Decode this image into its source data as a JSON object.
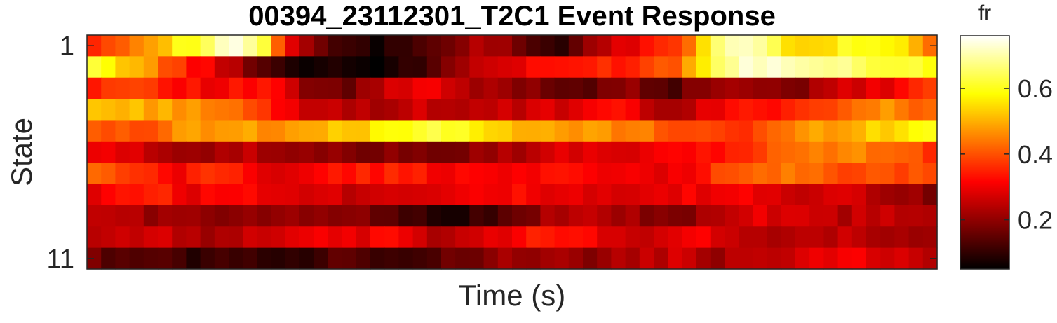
{
  "chart_data": {
    "type": "heatmap",
    "title": "00394_23112301_T2C1 Event Response",
    "xlabel": "Time (s)",
    "ylabel": "State",
    "colorbar_label": "fr",
    "colormap": "hot",
    "clim": [
      0.05,
      0.76
    ],
    "colorbar_ticks": [
      {
        "value": 0.2,
        "label": "0.2"
      },
      {
        "value": 0.4,
        "label": "0.4"
      },
      {
        "value": 0.6,
        "label": "0.6"
      }
    ],
    "y_ticks": [
      {
        "row": 1,
        "label": "1"
      },
      {
        "row": 11,
        "label": "11"
      }
    ],
    "rows": 11,
    "columns": 60,
    "row_profiles": [
      {
        "state": 1,
        "anchors": [
          [
            0,
            0.38
          ],
          [
            5,
            0.48
          ],
          [
            10,
            0.62
          ],
          [
            14,
            0.73
          ],
          [
            17,
            0.62
          ],
          [
            19,
            0.32
          ],
          [
            23,
            0.12
          ],
          [
            28,
            0.07
          ],
          [
            33,
            0.14
          ],
          [
            38,
            0.22
          ],
          [
            42,
            0.18
          ],
          [
            46,
            0.07
          ],
          [
            50,
            0.24
          ],
          [
            55,
            0.32
          ],
          [
            59,
            0.42
          ],
          [
            61,
            0.6
          ],
          [
            63,
            0.72
          ],
          [
            66,
            0.7
          ],
          [
            70,
            0.52
          ],
          [
            75,
            0.6
          ],
          [
            80,
            0.56
          ],
          [
            83,
            0.45
          ]
        ]
      },
      {
        "state": 2,
        "anchors": [
          [
            0,
            0.6
          ],
          [
            4,
            0.52
          ],
          [
            8,
            0.38
          ],
          [
            12,
            0.28
          ],
          [
            16,
            0.18
          ],
          [
            19,
            0.08
          ],
          [
            24,
            0.08
          ],
          [
            29,
            0.05
          ],
          [
            33,
            0.12
          ],
          [
            37,
            0.24
          ],
          [
            43,
            0.3
          ],
          [
            48,
            0.34
          ],
          [
            53,
            0.36
          ],
          [
            58,
            0.42
          ],
          [
            61,
            0.62
          ],
          [
            64,
            0.72
          ],
          [
            68,
            0.75
          ],
          [
            72,
            0.68
          ],
          [
            76,
            0.66
          ],
          [
            80,
            0.62
          ],
          [
            83,
            0.6
          ]
        ]
      },
      {
        "state": 3,
        "anchors": [
          [
            0,
            0.36
          ],
          [
            4,
            0.4
          ],
          [
            8,
            0.34
          ],
          [
            12,
            0.3
          ],
          [
            17,
            0.34
          ],
          [
            21,
            0.2
          ],
          [
            25,
            0.15
          ],
          [
            29,
            0.26
          ],
          [
            33,
            0.3
          ],
          [
            38,
            0.22
          ],
          [
            43,
            0.2
          ],
          [
            48,
            0.14
          ],
          [
            53,
            0.22
          ],
          [
            57,
            0.1
          ],
          [
            60,
            0.2
          ],
          [
            64,
            0.24
          ],
          [
            69,
            0.16
          ],
          [
            74,
            0.26
          ],
          [
            79,
            0.3
          ],
          [
            83,
            0.38
          ]
        ]
      },
      {
        "state": 4,
        "anchors": [
          [
            0,
            0.52
          ],
          [
            5,
            0.5
          ],
          [
            10,
            0.48
          ],
          [
            14,
            0.42
          ],
          [
            18,
            0.32
          ],
          [
            23,
            0.24
          ],
          [
            28,
            0.24
          ],
          [
            33,
            0.26
          ],
          [
            38,
            0.24
          ],
          [
            43,
            0.26
          ],
          [
            48,
            0.28
          ],
          [
            53,
            0.32
          ],
          [
            57,
            0.2
          ],
          [
            62,
            0.3
          ],
          [
            66,
            0.34
          ],
          [
            70,
            0.36
          ],
          [
            75,
            0.42
          ],
          [
            79,
            0.46
          ],
          [
            83,
            0.42
          ]
        ]
      },
      {
        "state": 5,
        "anchors": [
          [
            0,
            0.42
          ],
          [
            4,
            0.38
          ],
          [
            8,
            0.46
          ],
          [
            13,
            0.5
          ],
          [
            18,
            0.46
          ],
          [
            22,
            0.5
          ],
          [
            26,
            0.52
          ],
          [
            30,
            0.6
          ],
          [
            34,
            0.64
          ],
          [
            38,
            0.56
          ],
          [
            42,
            0.5
          ],
          [
            47,
            0.48
          ],
          [
            52,
            0.46
          ],
          [
            56,
            0.42
          ],
          [
            60,
            0.4
          ],
          [
            64,
            0.36
          ],
          [
            68,
            0.42
          ],
          [
            72,
            0.48
          ],
          [
            76,
            0.52
          ],
          [
            80,
            0.56
          ],
          [
            83,
            0.58
          ]
        ]
      },
      {
        "state": 6,
        "anchors": [
          [
            0,
            0.3
          ],
          [
            5,
            0.26
          ],
          [
            10,
            0.22
          ],
          [
            15,
            0.24
          ],
          [
            20,
            0.2
          ],
          [
            25,
            0.18
          ],
          [
            30,
            0.2
          ],
          [
            35,
            0.18
          ],
          [
            40,
            0.22
          ],
          [
            45,
            0.26
          ],
          [
            50,
            0.3
          ],
          [
            55,
            0.28
          ],
          [
            58,
            0.3
          ],
          [
            62,
            0.34
          ],
          [
            66,
            0.38
          ],
          [
            70,
            0.44
          ],
          [
            75,
            0.46
          ],
          [
            79,
            0.42
          ],
          [
            83,
            0.38
          ]
        ]
      },
      {
        "state": 7,
        "anchors": [
          [
            0,
            0.42
          ],
          [
            4,
            0.36
          ],
          [
            8,
            0.3
          ],
          [
            12,
            0.38
          ],
          [
            16,
            0.3
          ],
          [
            20,
            0.28
          ],
          [
            25,
            0.34
          ],
          [
            30,
            0.34
          ],
          [
            35,
            0.32
          ],
          [
            40,
            0.3
          ],
          [
            45,
            0.34
          ],
          [
            50,
            0.3
          ],
          [
            55,
            0.28
          ],
          [
            58,
            0.3
          ],
          [
            62,
            0.38
          ],
          [
            66,
            0.42
          ],
          [
            70,
            0.44
          ],
          [
            75,
            0.4
          ],
          [
            80,
            0.38
          ],
          [
            83,
            0.4
          ]
        ]
      },
      {
        "state": 8,
        "anchors": [
          [
            0,
            0.3
          ],
          [
            5,
            0.36
          ],
          [
            10,
            0.3
          ],
          [
            15,
            0.32
          ],
          [
            20,
            0.3
          ],
          [
            25,
            0.26
          ],
          [
            30,
            0.28
          ],
          [
            35,
            0.3
          ],
          [
            40,
            0.32
          ],
          [
            45,
            0.3
          ],
          [
            50,
            0.26
          ],
          [
            55,
            0.28
          ],
          [
            60,
            0.3
          ],
          [
            65,
            0.3
          ],
          [
            70,
            0.26
          ],
          [
            75,
            0.3
          ],
          [
            79,
            0.22
          ],
          [
            83,
            0.18
          ]
        ]
      },
      {
        "state": 9,
        "anchors": [
          [
            0,
            0.26
          ],
          [
            5,
            0.22
          ],
          [
            10,
            0.2
          ],
          [
            15,
            0.18
          ],
          [
            20,
            0.22
          ],
          [
            25,
            0.2
          ],
          [
            30,
            0.14
          ],
          [
            35,
            0.08
          ],
          [
            40,
            0.12
          ],
          [
            45,
            0.22
          ],
          [
            50,
            0.24
          ],
          [
            55,
            0.2
          ],
          [
            58,
            0.16
          ],
          [
            62,
            0.24
          ],
          [
            66,
            0.28
          ],
          [
            70,
            0.26
          ],
          [
            75,
            0.24
          ],
          [
            80,
            0.26
          ],
          [
            83,
            0.22
          ]
        ]
      },
      {
        "state": 10,
        "anchors": [
          [
            0,
            0.24
          ],
          [
            5,
            0.28
          ],
          [
            10,
            0.22
          ],
          [
            15,
            0.26
          ],
          [
            20,
            0.3
          ],
          [
            25,
            0.28
          ],
          [
            30,
            0.32
          ],
          [
            35,
            0.22
          ],
          [
            40,
            0.3
          ],
          [
            45,
            0.34
          ],
          [
            50,
            0.3
          ],
          [
            55,
            0.26
          ],
          [
            60,
            0.3
          ],
          [
            65,
            0.26
          ],
          [
            70,
            0.22
          ],
          [
            75,
            0.26
          ],
          [
            80,
            0.22
          ],
          [
            83,
            0.2
          ]
        ]
      },
      {
        "state": 11,
        "anchors": [
          [
            0,
            0.16
          ],
          [
            5,
            0.14
          ],
          [
            10,
            0.1
          ],
          [
            15,
            0.12
          ],
          [
            20,
            0.1
          ],
          [
            25,
            0.14
          ],
          [
            30,
            0.12
          ],
          [
            35,
            0.16
          ],
          [
            40,
            0.2
          ],
          [
            45,
            0.22
          ],
          [
            50,
            0.2
          ],
          [
            55,
            0.24
          ],
          [
            58,
            0.26
          ],
          [
            62,
            0.22
          ],
          [
            66,
            0.24
          ],
          [
            70,
            0.28
          ],
          [
            75,
            0.3
          ],
          [
            80,
            0.26
          ],
          [
            83,
            0.24
          ]
        ]
      }
    ]
  }
}
